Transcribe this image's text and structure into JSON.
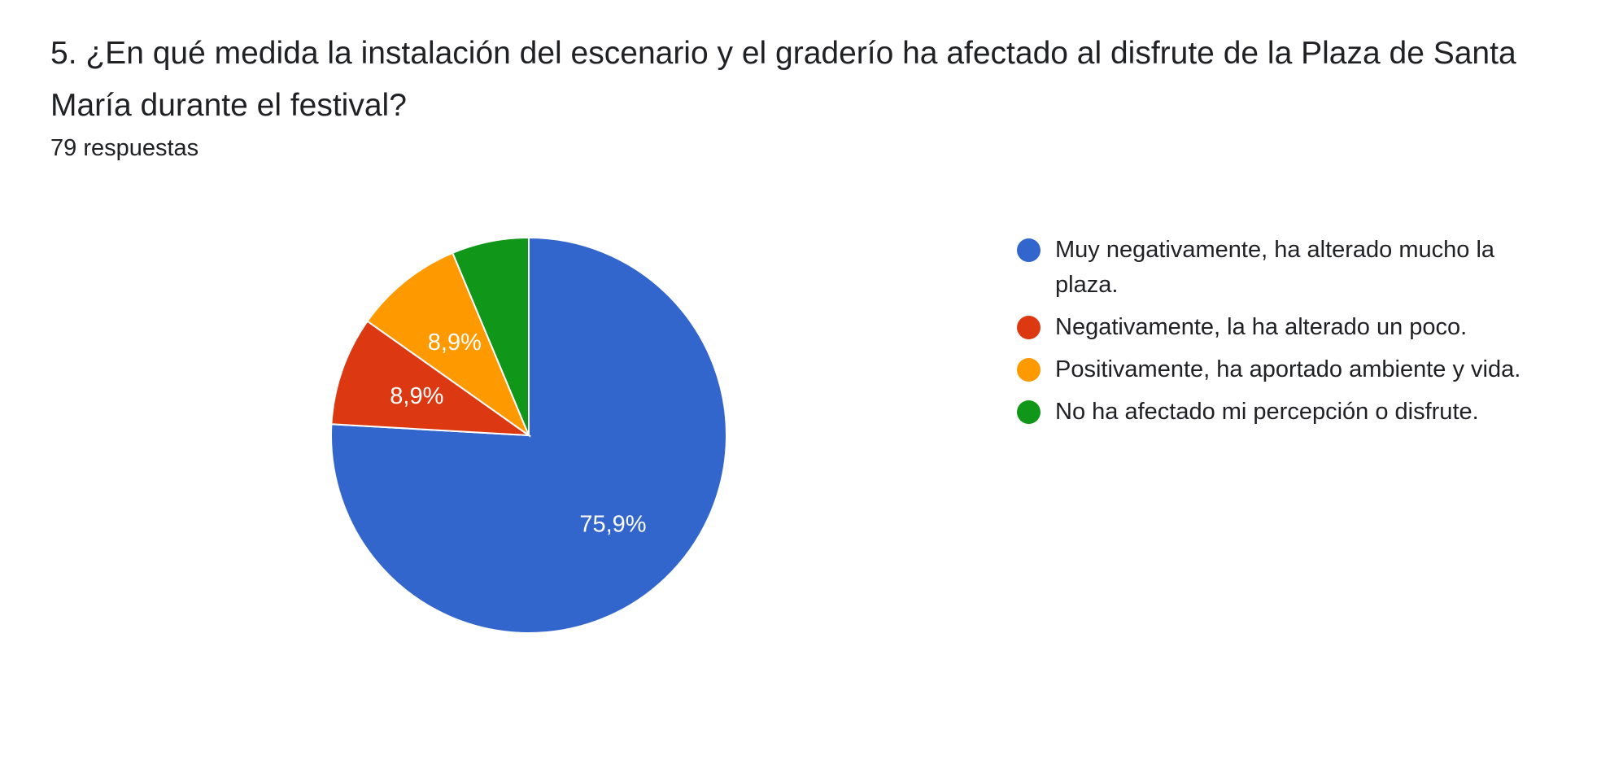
{
  "title": "5. ¿En qué medida la instalación del escenario y el graderío ha afectado al disfrute de la Plaza de Santa María durante el festival?",
  "response_count": "79 respuestas",
  "colors": {
    "blue": "#3366cc",
    "red": "#dc3912",
    "orange": "#ff9900",
    "green": "#109618"
  },
  "chart_data": {
    "type": "pie",
    "title": "5. ¿En qué medida la instalación del escenario y el graderío ha afectado al disfrute de la Plaza de Santa María durante el festival?",
    "total": 79,
    "legend_position": "right",
    "slices": [
      {
        "label": "Muy negativamente, ha alterado mucho la plaza.",
        "value": 75.9,
        "display": "75,9%",
        "color": "#3366cc"
      },
      {
        "label": "Negativamente, la ha alterado un poco.",
        "value": 8.9,
        "display": "8,9%",
        "color": "#dc3912"
      },
      {
        "label": "Positivamente, ha aportado ambiente y vida.",
        "value": 8.9,
        "display": "8,9%",
        "color": "#ff9900"
      },
      {
        "label": "No ha afectado mi percepción o disfrute.",
        "value": 6.3,
        "display": "",
        "color": "#109618"
      }
    ]
  }
}
